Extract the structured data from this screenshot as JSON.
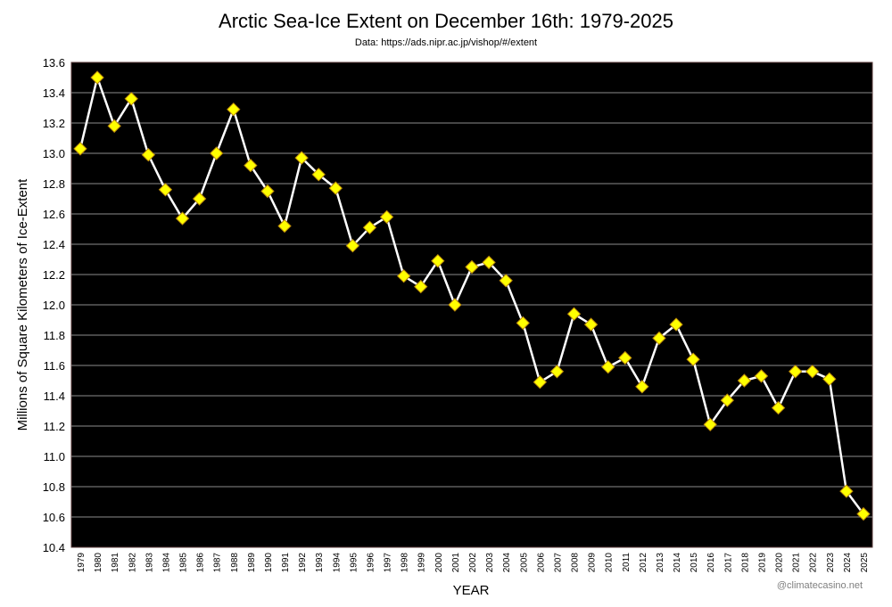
{
  "chart_data": {
    "type": "line",
    "title": "Arctic Sea-Ice Extent on December 16th: 1979-2025",
    "subtitle": "Data: https://ads.nipr.ac.jp/vishop/#/extent",
    "xlabel": "YEAR",
    "ylabel": "Millions of Square Kilometers of Ice-Extent",
    "credit": "@climatecasino.net",
    "ylim": [
      10.4,
      13.6
    ],
    "yticks": [
      "10.4",
      "10.6",
      "10.8",
      "11.0",
      "11.2",
      "11.4",
      "11.6",
      "11.8",
      "12.0",
      "12.2",
      "12.4",
      "12.6",
      "12.8",
      "13.0",
      "13.2",
      "13.4",
      "13.6"
    ],
    "grid": true,
    "background": "#000000",
    "line_color": "#ffffff",
    "marker_color": "#ffff00",
    "marker": "diamond",
    "x": [
      1979,
      1980,
      1981,
      1982,
      1983,
      1984,
      1985,
      1986,
      1987,
      1988,
      1989,
      1990,
      1991,
      1992,
      1993,
      1994,
      1995,
      1996,
      1997,
      1998,
      1999,
      2000,
      2001,
      2002,
      2003,
      2004,
      2005,
      2006,
      2007,
      2008,
      2009,
      2010,
      2011,
      2012,
      2013,
      2014,
      2015,
      2016,
      2017,
      2018,
      2019,
      2020,
      2021,
      2022,
      2023,
      2024,
      2025
    ],
    "values": [
      13.03,
      13.5,
      13.18,
      13.36,
      12.99,
      12.76,
      12.57,
      12.7,
      13.0,
      13.29,
      12.92,
      12.75,
      12.52,
      12.97,
      12.86,
      12.77,
      12.39,
      12.51,
      12.58,
      12.19,
      12.12,
      12.29,
      12.0,
      12.25,
      12.28,
      12.16,
      11.88,
      11.49,
      11.56,
      11.94,
      11.87,
      11.59,
      11.65,
      11.46,
      11.78,
      11.87,
      11.64,
      11.21,
      11.37,
      11.5,
      11.53,
      11.32,
      11.56,
      11.56,
      11.51,
      10.77,
      10.62
    ]
  }
}
